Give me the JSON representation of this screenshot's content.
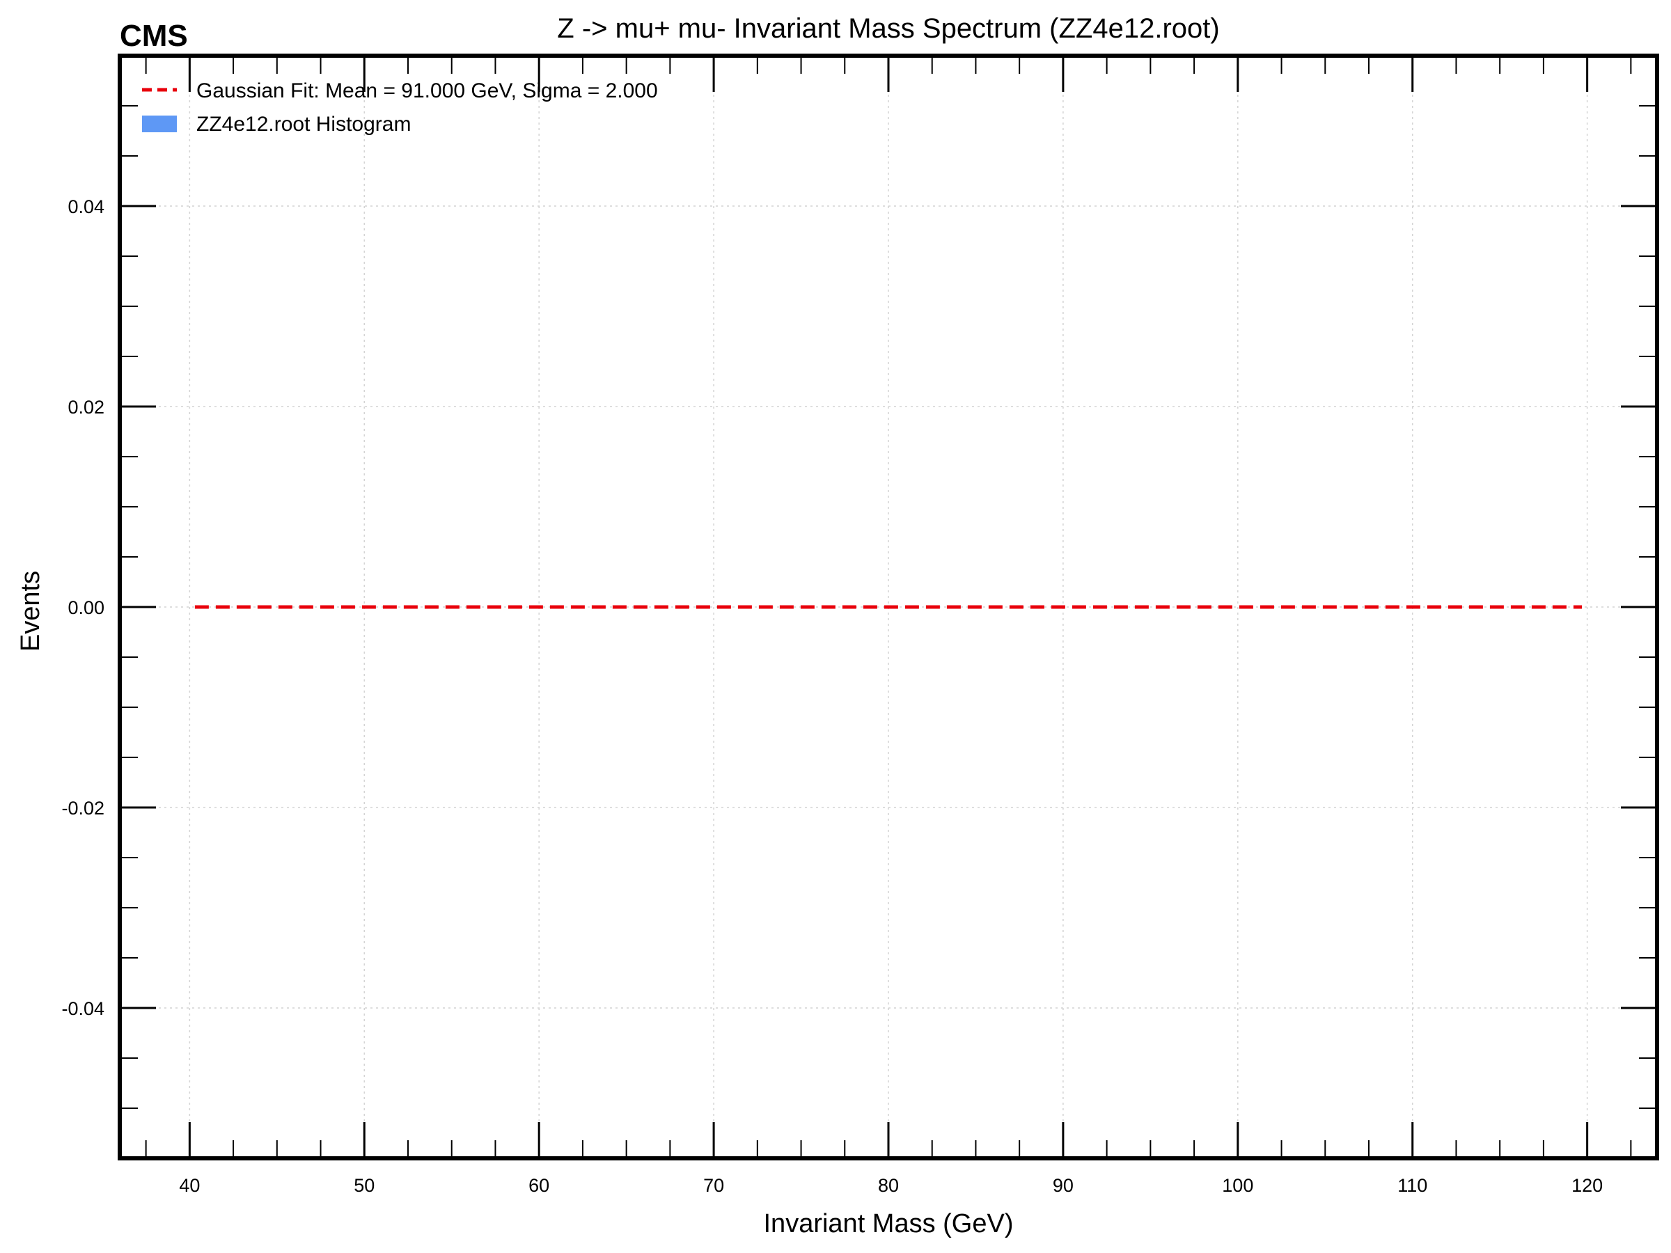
{
  "chart_data": {
    "type": "line",
    "experiment_label": "CMS",
    "title": "Z -> mu+ mu- Invariant Mass Spectrum (ZZ4e12.root)",
    "xlabel": "Invariant Mass (GeV)",
    "ylabel": "Events",
    "xlim": [
      36,
      124
    ],
    "ylim": [
      -0.055,
      0.055
    ],
    "x_ticks": [
      40,
      50,
      60,
      70,
      80,
      90,
      100,
      110,
      120
    ],
    "x_tick_labels": [
      "40",
      "50",
      "60",
      "70",
      "80",
      "90",
      "100",
      "110",
      "120"
    ],
    "y_ticks": [
      -0.04,
      -0.02,
      0.0,
      0.02,
      0.04
    ],
    "y_tick_labels": [
      "-0.04",
      "-0.02",
      "0.00",
      "0.02",
      "0.04"
    ],
    "grid": true,
    "legend_placement": "top-left",
    "series": [
      {
        "name": "Gaussian Fit: Mean = 91.000 GeV, Sigma = 2.000",
        "kind": "line",
        "style": "dashed",
        "color": "#e8000b",
        "x": [
          40.3,
          119.7
        ],
        "y": [
          0.0,
          0.0
        ]
      },
      {
        "name": "ZZ4e12.root Histogram",
        "kind": "histogram",
        "color": "#5e98f5",
        "bins": []
      }
    ]
  }
}
